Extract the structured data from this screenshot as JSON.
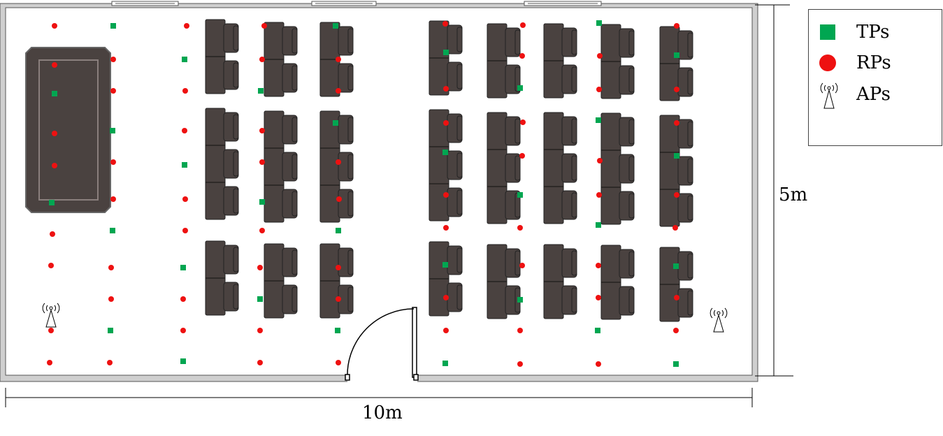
{
  "legend": {
    "tp_label": "TPs",
    "rp_label": "RPs",
    "ap_label": "APs"
  },
  "dimensions": {
    "width_label": "10m",
    "height_label": "5m"
  },
  "colors": {
    "tp": "#00a651",
    "rp": "#ee1111",
    "furniture": "#4a4240",
    "wall": "#cfcfcf"
  },
  "icons": {
    "tp": "green-square",
    "rp": "red-circle",
    "ap": "antenna-icon"
  }
}
